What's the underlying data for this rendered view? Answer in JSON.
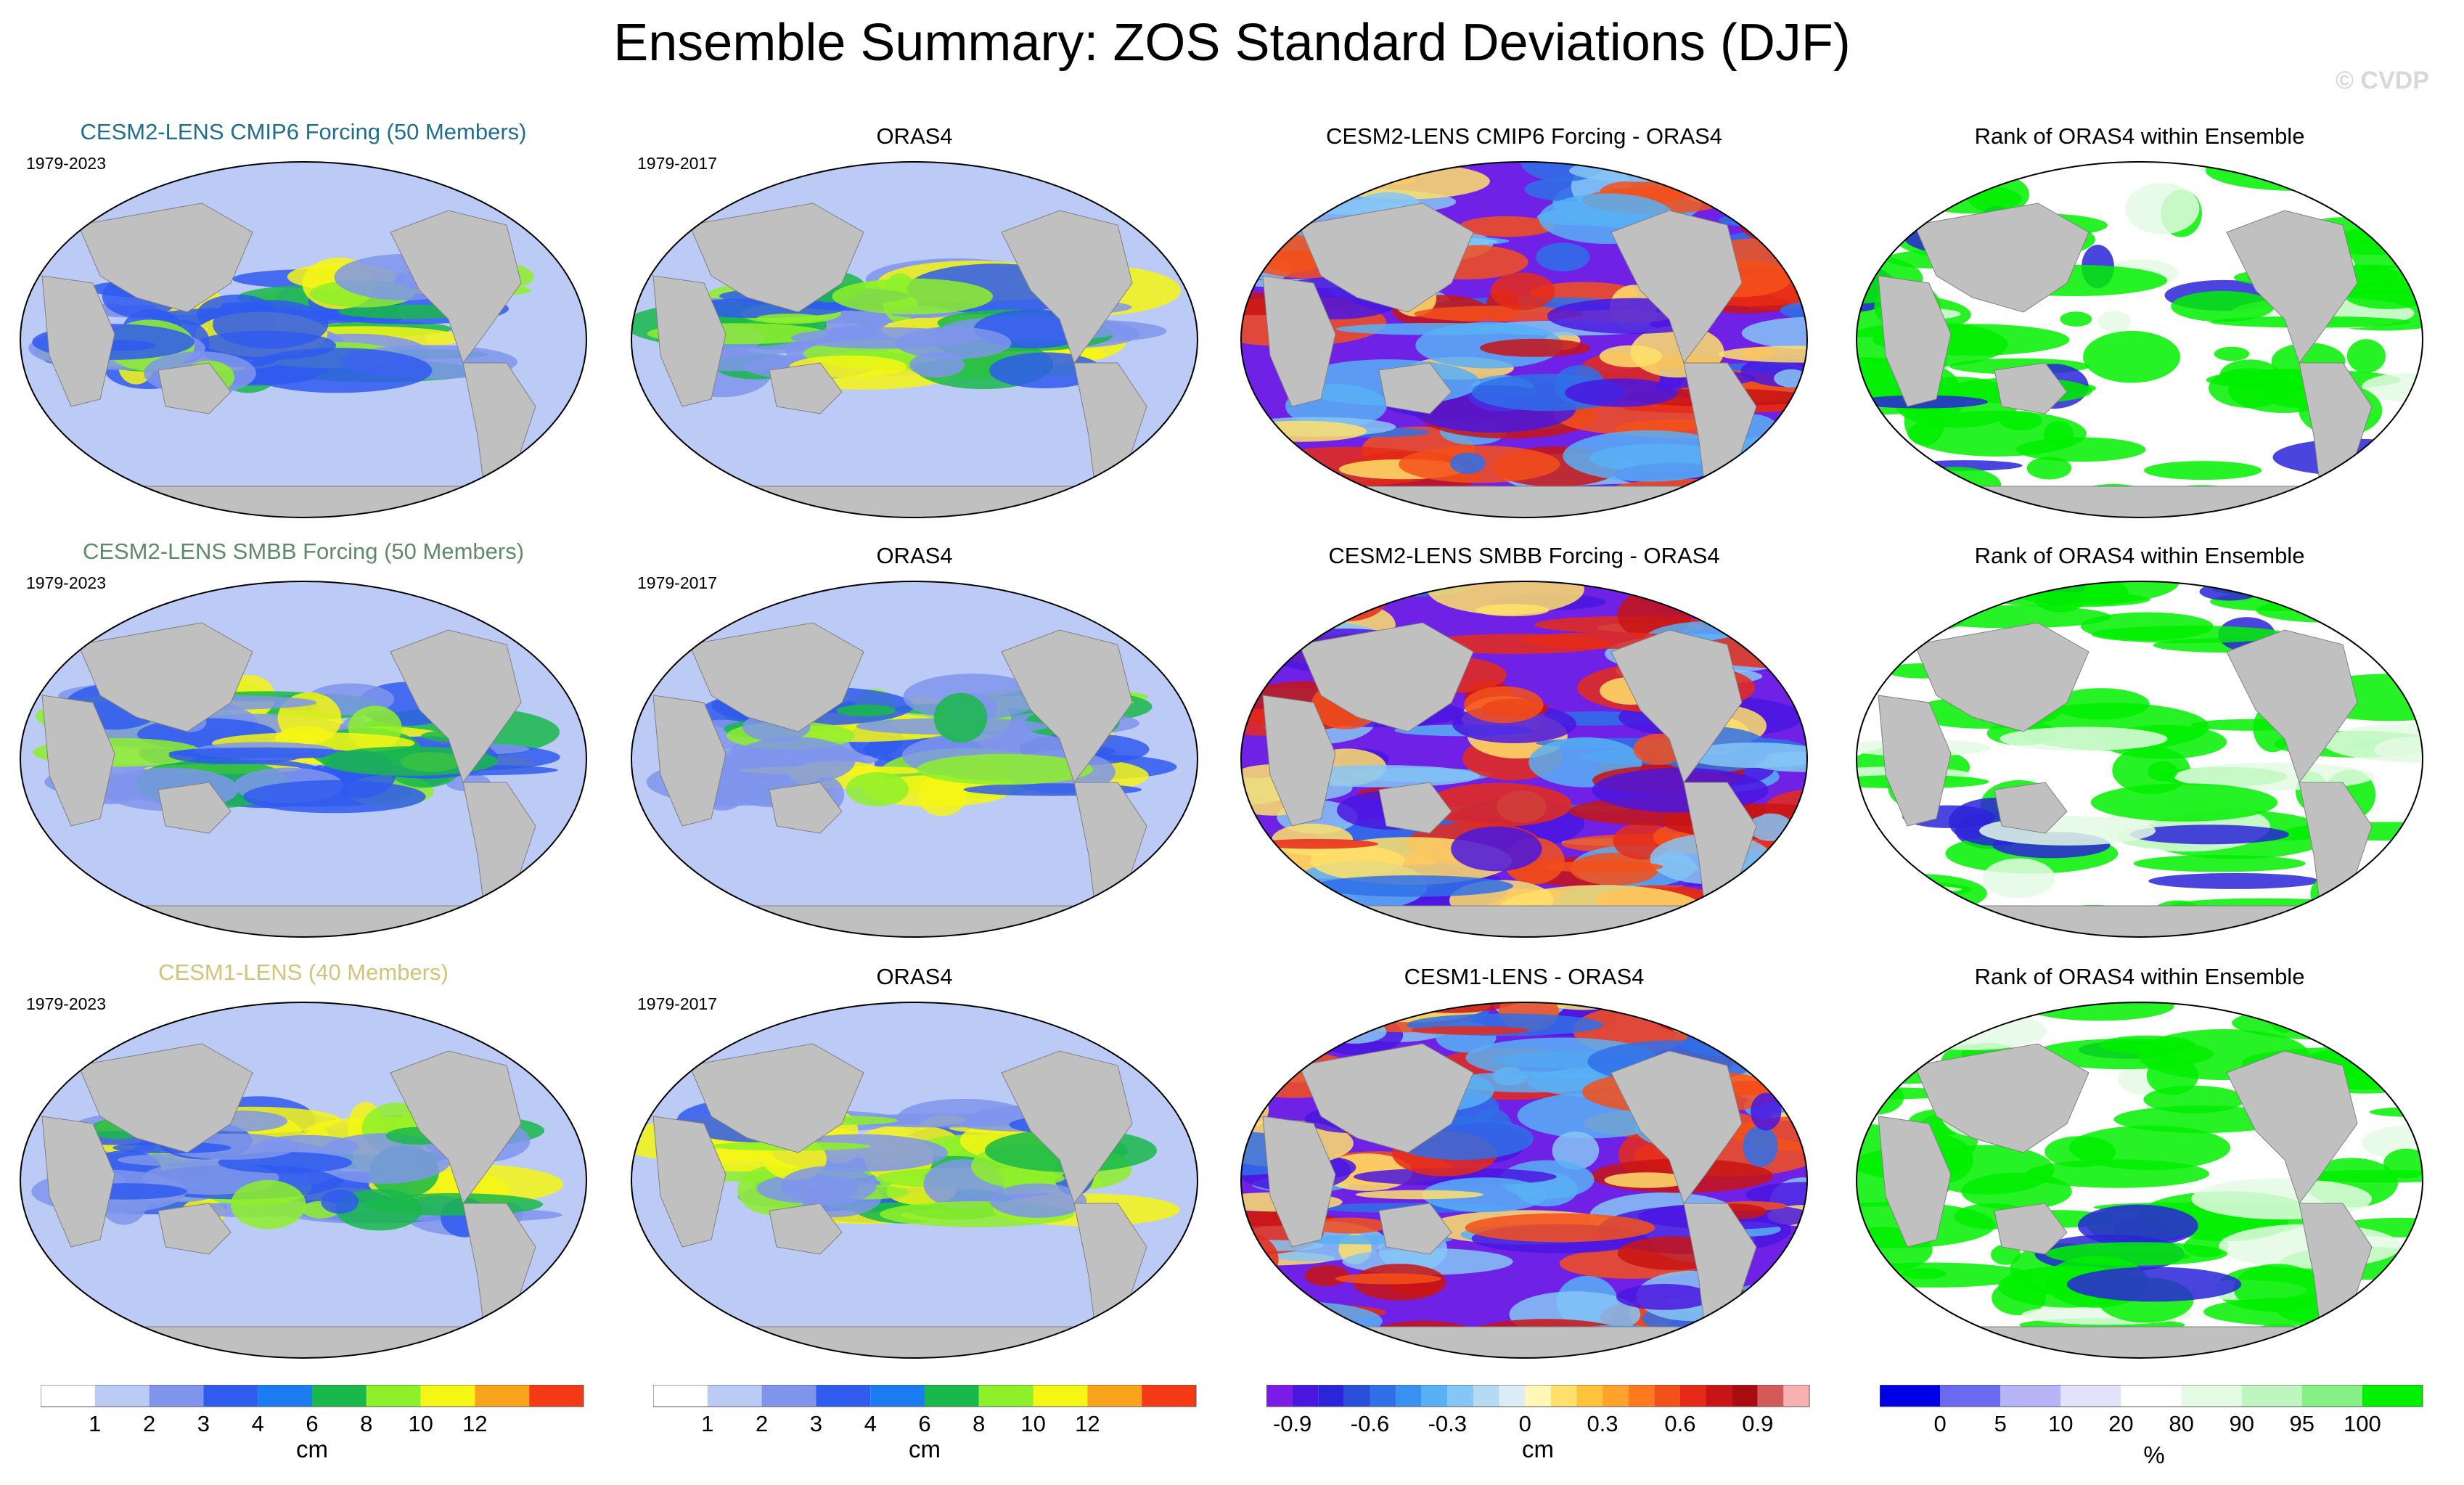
{
  "title": "Ensemble Summary: ZOS Standard Deviations (DJF)",
  "watermark": "© CVDP",
  "rows": [
    {
      "ensemble_title": "CESM2-LENS CMIP6 Forcing (50 Members)",
      "ensemble_title_color": "#1f6e8c",
      "ensemble_years": "1979-2023",
      "obs_title": "ORAS4",
      "obs_years": "1979-2017",
      "diff_title": "CESM2-LENS CMIP6 Forcing - ORAS4",
      "rank_title": "Rank of ORAS4 within Ensemble"
    },
    {
      "ensemble_title": "CESM2-LENS SMBB Forcing (50 Members)",
      "ensemble_title_color": "#5f8a6a",
      "ensemble_years": "1979-2023",
      "obs_title": "ORAS4",
      "obs_years": "1979-2017",
      "diff_title": "CESM2-LENS SMBB Forcing - ORAS4",
      "rank_title": "Rank of ORAS4 within Ensemble"
    },
    {
      "ensemble_title": "CESM1-LENS (40 Members)",
      "ensemble_title_color": "#d4c27a",
      "ensemble_years": "1979-2023",
      "obs_title": "ORAS4",
      "obs_years": "1979-2017",
      "diff_title": "CESM1-LENS - ORAS4",
      "rank_title": "Rank of ORAS4 within Ensemble"
    }
  ],
  "chart_data": [
    {
      "type": "heatmap",
      "id": "std_colorbar",
      "units": "cm",
      "levels": [
        1,
        2,
        3,
        4,
        6,
        8,
        10,
        12
      ],
      "tick_labels": [
        "1",
        "2",
        "3",
        "4",
        "6",
        "8",
        "10",
        "12"
      ],
      "colors": [
        "#ffffff",
        "#bccbf6",
        "#7f95ec",
        "#2f5bee",
        "#1a7cf0",
        "#19b84a",
        "#8ef02a",
        "#f6f614",
        "#f9a21b",
        "#f43a15"
      ]
    },
    {
      "type": "heatmap",
      "id": "diff_colorbar",
      "units": "cm",
      "levels": [
        -1.0,
        -0.9,
        -0.8,
        -0.7,
        -0.6,
        -0.5,
        -0.4,
        -0.3,
        -0.2,
        -0.1,
        0,
        0.1,
        0.2,
        0.3,
        0.4,
        0.5,
        0.6,
        0.7,
        0.8,
        0.9,
        1.0
      ],
      "tick_values": [
        -0.9,
        -0.6,
        -0.3,
        0,
        0.3,
        0.6,
        0.9
      ],
      "tick_labels": [
        "-0.9",
        "-0.6",
        "-0.3",
        "0",
        "0.3",
        "0.6",
        "0.9"
      ],
      "colors": [
        "#7b1be6",
        "#4a16e0",
        "#2a25d8",
        "#2a4fd8",
        "#2f70e8",
        "#3a92f0",
        "#58b0f5",
        "#86c6f5",
        "#b4daf4",
        "#dcecf7",
        "#fff6b8",
        "#ffe06a",
        "#ffc23a",
        "#ffa12a",
        "#ff7a1f",
        "#f4501a",
        "#e62a17",
        "#c81414",
        "#a80b10",
        "#d45a5a",
        "#f7b1b1"
      ]
    },
    {
      "type": "heatmap",
      "id": "rank_colorbar",
      "units": "%",
      "levels": [
        0,
        5,
        10,
        20,
        80,
        90,
        95,
        100
      ],
      "tick_labels": [
        "0",
        "5",
        "10",
        "20",
        "80",
        "90",
        "95",
        "100"
      ],
      "colors": [
        "#0000e8",
        "#6a6af0",
        "#b4b4f6",
        "#e2e2fb",
        "#ffffff",
        "#e4fae4",
        "#bff5bf",
        "#85f085",
        "#00f000"
      ]
    },
    {
      "type": "heatmap",
      "id": "global_maps",
      "description_fields": "panel_kinds",
      "panel_kinds": [
        "ensemble_mean_std",
        "observed_std",
        "difference",
        "rank"
      ],
      "ylim": [
        -90,
        90
      ],
      "xlim": [
        0,
        360
      ]
    }
  ]
}
